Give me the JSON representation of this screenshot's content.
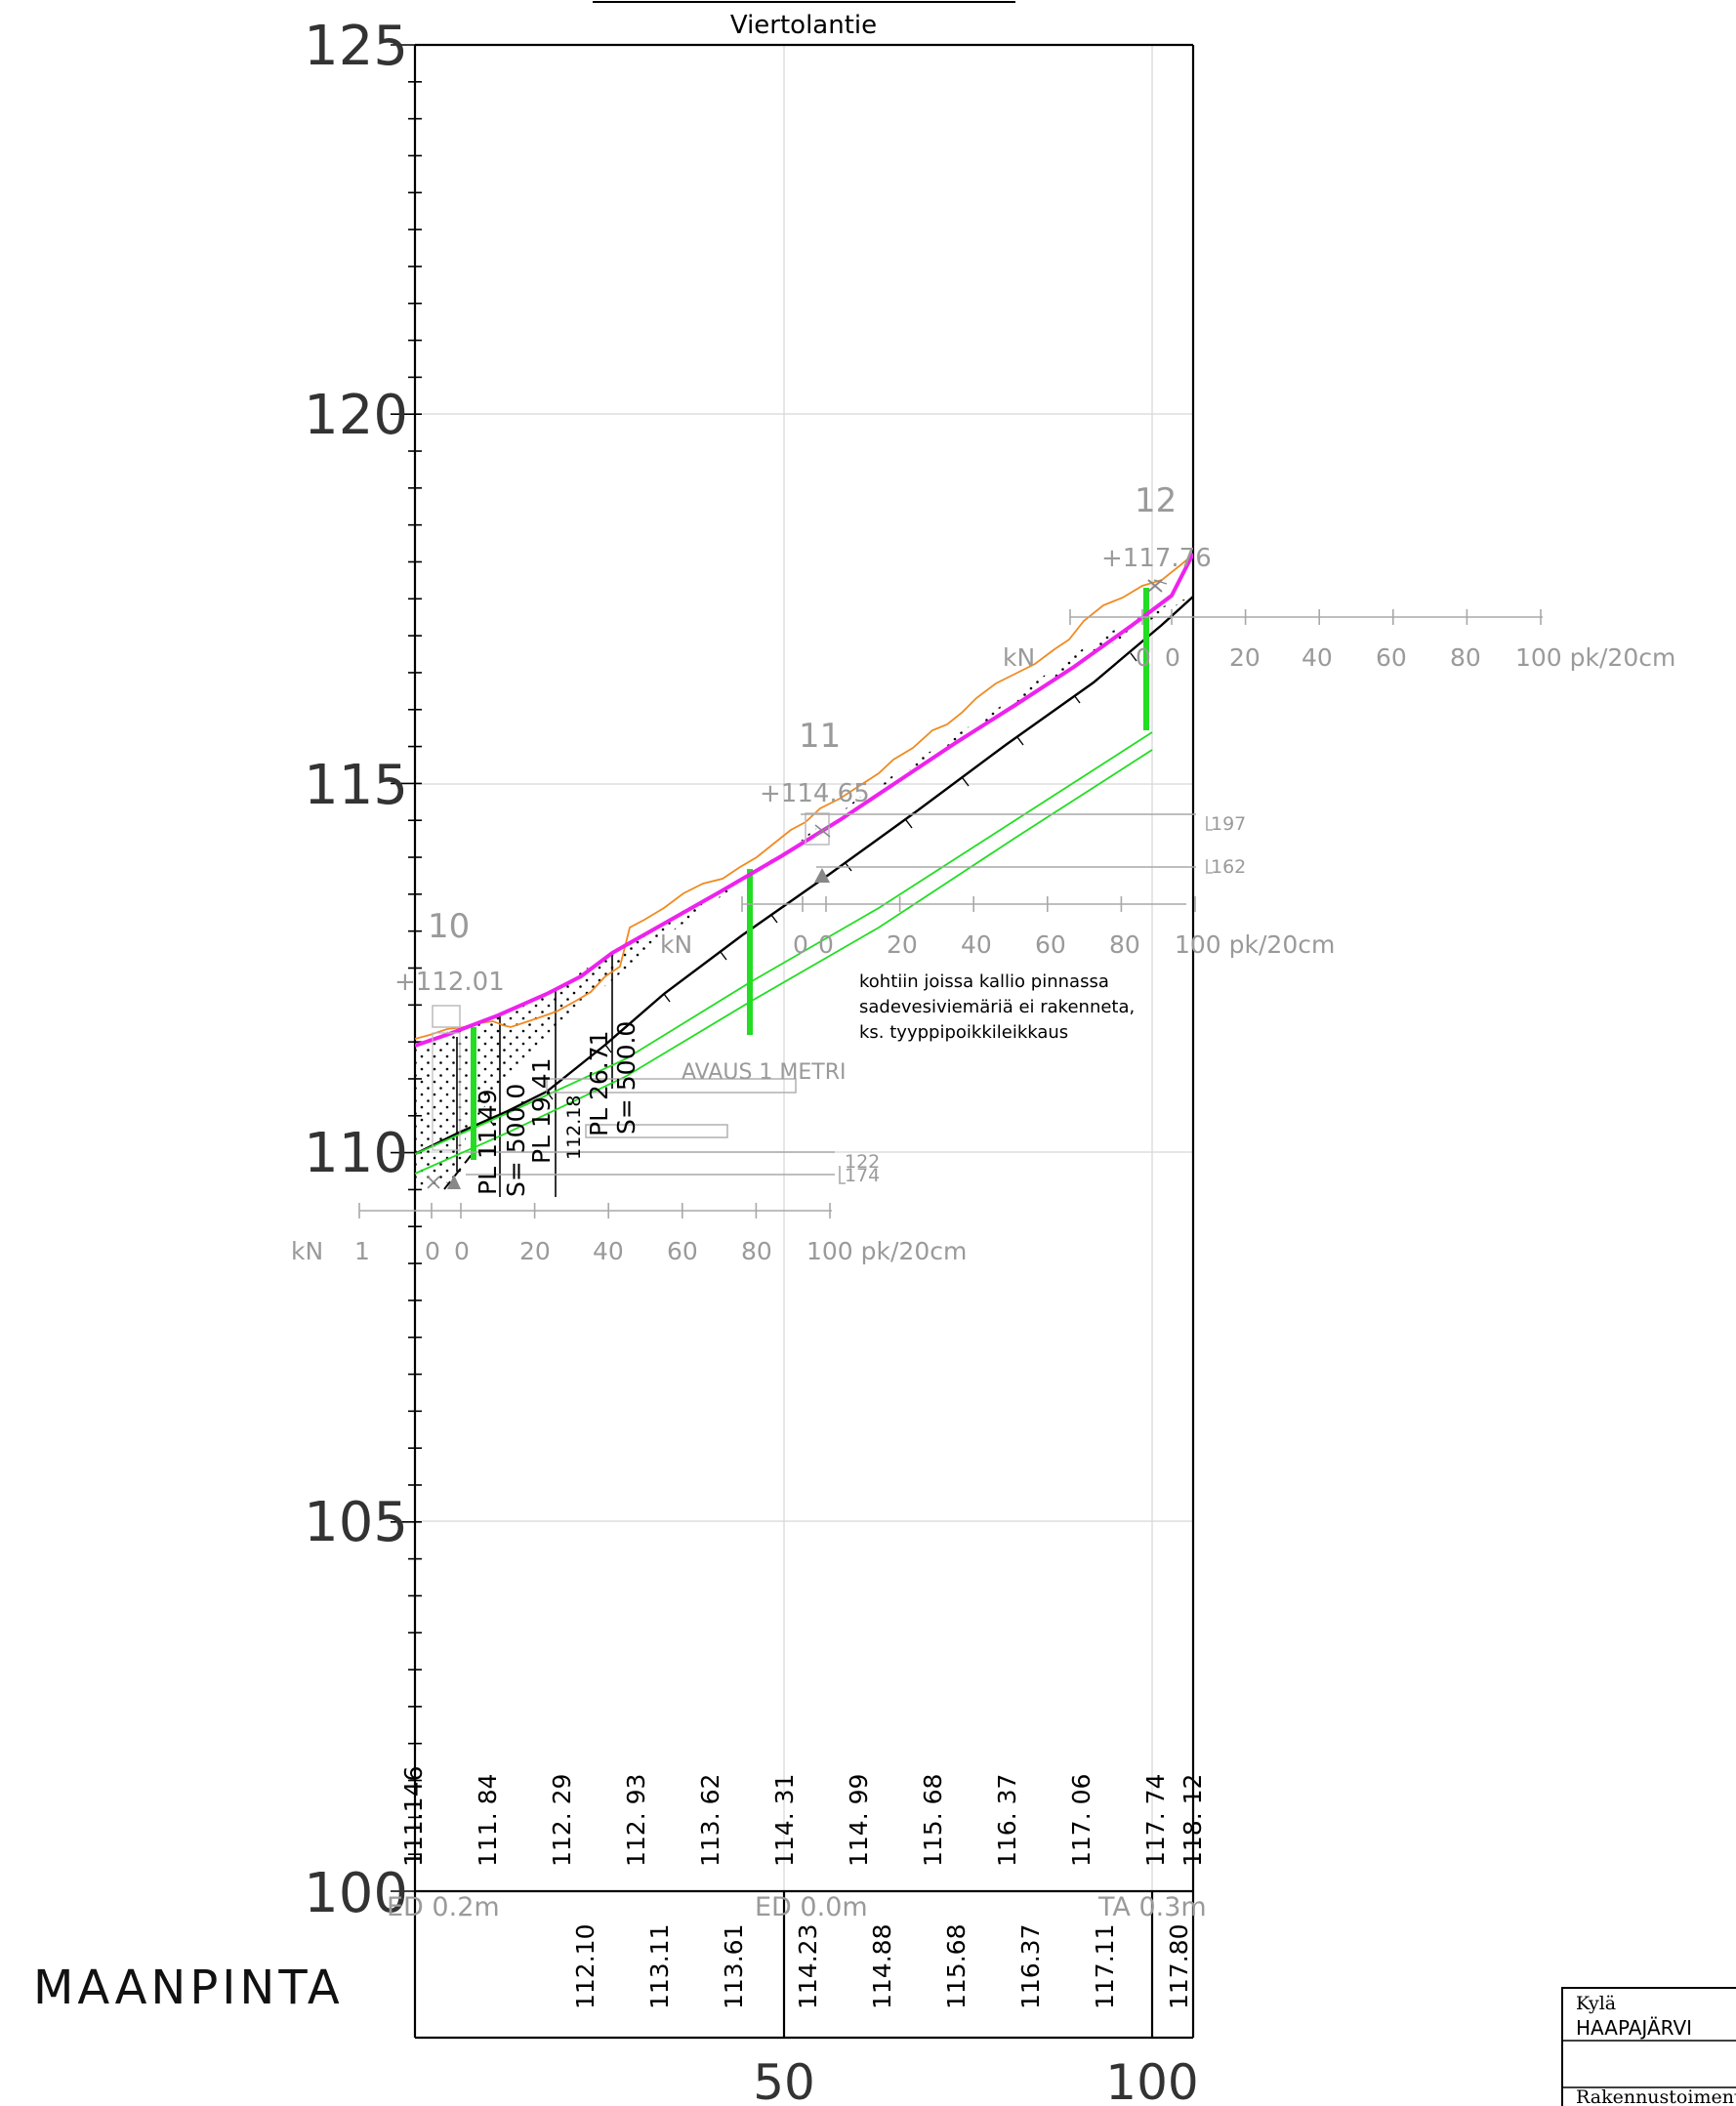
{
  "title": "Viertolantie",
  "section_label": "MAANPINTA",
  "chart_data": {
    "type": "diagram",
    "y_ticks": [
      "125",
      "120",
      "115",
      "110",
      "105",
      "100"
    ],
    "x_ticks": [
      "50",
      "100"
    ],
    "stations": [
      {
        "number": "10",
        "elevation": "+112.01"
      },
      {
        "number": "11",
        "elevation": "+114.65"
      },
      {
        "number": "12",
        "elevation": "+117.76"
      }
    ],
    "scales": [
      {
        "unit": "kN",
        "labels": [
          "1",
          "0",
          "0",
          "20",
          "40",
          "60",
          "80",
          "100 pk/20cm"
        ]
      },
      {
        "unit": "kN",
        "labels": [
          "0",
          "0",
          "20",
          "40",
          "60",
          "80",
          "100 pk/20cm"
        ]
      },
      {
        "unit": "kN",
        "labels": [
          "0",
          "0",
          "20",
          "40",
          "60",
          "80",
          "100 pk/20cm"
        ]
      }
    ],
    "depth_markers": [
      "197",
      "162",
      "122",
      "174"
    ],
    "curve_labels": [
      "PL 11.49",
      "S= 500.0",
      "PL 19.41",
      "112.18",
      "PL 26.71",
      "S= 500.0"
    ],
    "opening_label": "AVAUS 1 METRI",
    "note": [
      "kohtiin joissa kallio pinnassa",
      "sadevesiviemäriä ei rakenneta,",
      "ks. tyyppipoikkileikkaus"
    ],
    "ground_elevations": [
      "111.146",
      "111. 84",
      "112. 29",
      "112. 93",
      "113. 62",
      "114. 31",
      "114. 99",
      "115. 68",
      "116. 37",
      "117. 06",
      "117. 74",
      "118. 12"
    ],
    "pipe_elevations": [
      "112.10",
      "113.11",
      "113.61",
      "114.23",
      "114.88",
      "115.68",
      "116.37",
      "117.11",
      "117.80"
    ],
    "soil_labels": [
      "ED 0.2m",
      "ED 0.0m",
      "TA 0.3m"
    ]
  },
  "title_block": {
    "village_label": "Kylä",
    "village_value": "HAAPAJÄRVI",
    "department": "Rakennustoimenpiteet"
  }
}
